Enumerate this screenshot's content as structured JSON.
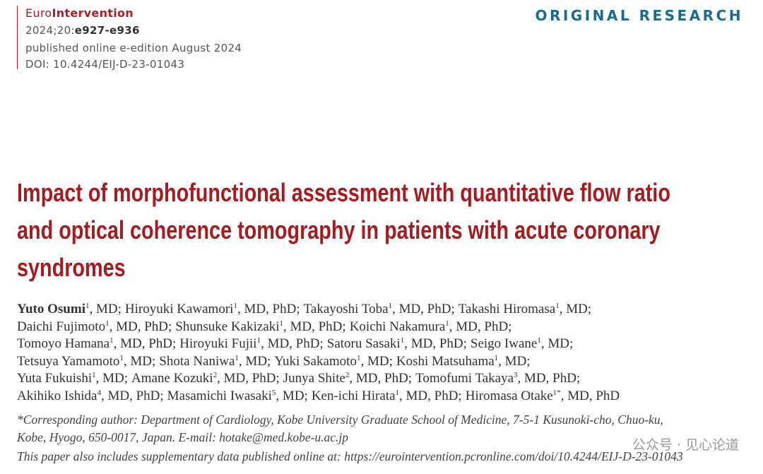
{
  "journal": {
    "prefix": "Euro",
    "name": "Intervention"
  },
  "citation": {
    "volume": "2024;20:",
    "pages": "e927-e936"
  },
  "published": "published online e-edition August 2024",
  "doi": "DOI: 10.4244/EIJ-D-23-01043",
  "section": "ORIGINAL RESEARCH",
  "title": {
    "lines": [
      "Impact of morphofunctional assessment with quantitative flow ratio",
      "and optical coherence tomography in patients with acute coronary",
      "syndromes"
    ]
  },
  "authors": {
    "lines": [
      [
        {
          "name": "Yuto Osumi",
          "sup": "1",
          "suffix": ", MD;"
        },
        {
          "name": "Hiroyuki Kawamori",
          "sup": "1",
          "suffix": ", MD, PhD;"
        },
        {
          "name": "Takayoshi Toba",
          "sup": "1",
          "suffix": ", MD, PhD;"
        },
        {
          "name": "Takashi Hiromasa",
          "sup": "1",
          "suffix": ", MD;"
        }
      ],
      [
        {
          "name": "Daichi Fujimoto",
          "sup": "1",
          "suffix": ", MD, PhD;"
        },
        {
          "name": "Shunsuke Kakizaki",
          "sup": "1",
          "suffix": ", MD, PhD;"
        },
        {
          "name": "Koichi Nakamura",
          "sup": "1",
          "suffix": ", MD, PhD;"
        }
      ],
      [
        {
          "name": "Tomoyo Hamana",
          "sup": "1",
          "suffix": ", MD, PhD;"
        },
        {
          "name": "Hiroyuki Fujii",
          "sup": "1",
          "suffix": ", MD, PhD;"
        },
        {
          "name": "Satoru Sasaki",
          "sup": "1",
          "suffix": ", MD, PhD;"
        },
        {
          "name": "Seigo Iwane",
          "sup": "1",
          "suffix": ", MD;"
        }
      ],
      [
        {
          "name": "Tetsuya Yamamoto",
          "sup": "1",
          "suffix": ", MD;"
        },
        {
          "name": "Shota Naniwa",
          "sup": "1",
          "suffix": ", MD;"
        },
        {
          "name": "Yuki Sakamoto",
          "sup": "1",
          "suffix": ", MD;"
        },
        {
          "name": "Koshi Matsuhama",
          "sup": "1",
          "suffix": ", MD;"
        }
      ],
      [
        {
          "name": "Yuta Fukuishi",
          "sup": "1",
          "suffix": ", MD;"
        },
        {
          "name": "Amane Kozuki",
          "sup": "2",
          "suffix": ", MD, PhD;"
        },
        {
          "name": "Junya Shite",
          "sup": "2",
          "suffix": ", MD, PhD;"
        },
        {
          "name": "Tomofumi Takaya",
          "sup": "3",
          "suffix": ", MD, PhD;"
        }
      ],
      [
        {
          "name": "Akihiko Ishida",
          "sup": "4",
          "suffix": ", MD, PhD;"
        },
        {
          "name": "Masamichi Iwasaki",
          "sup": "5",
          "suffix": ", MD;"
        },
        {
          "name": "Ken-ichi Hirata",
          "sup": "1",
          "suffix": ", MD, PhD;"
        },
        {
          "name": "Hiromasa Otake",
          "sup": "1*",
          "suffix": ", MD, PhD"
        }
      ]
    ]
  },
  "correspondence": {
    "lines": [
      "*Corresponding author: Department of Cardiology, Kobe University Graduate School of Medicine, 7-5-1 Kusunoki-cho, Chuo-ku,",
      "Kobe, Hyogo, 650-0017, Japan. E-mail: hotake@med.kobe-u.ac.jp"
    ]
  },
  "supplementary": "This paper also includes supplementary data published online at: https://eurointervention.pcronline.com/doi/10.4244/EIJ-D-23-01043",
  "watermark": "公众号 · 见心论道"
}
